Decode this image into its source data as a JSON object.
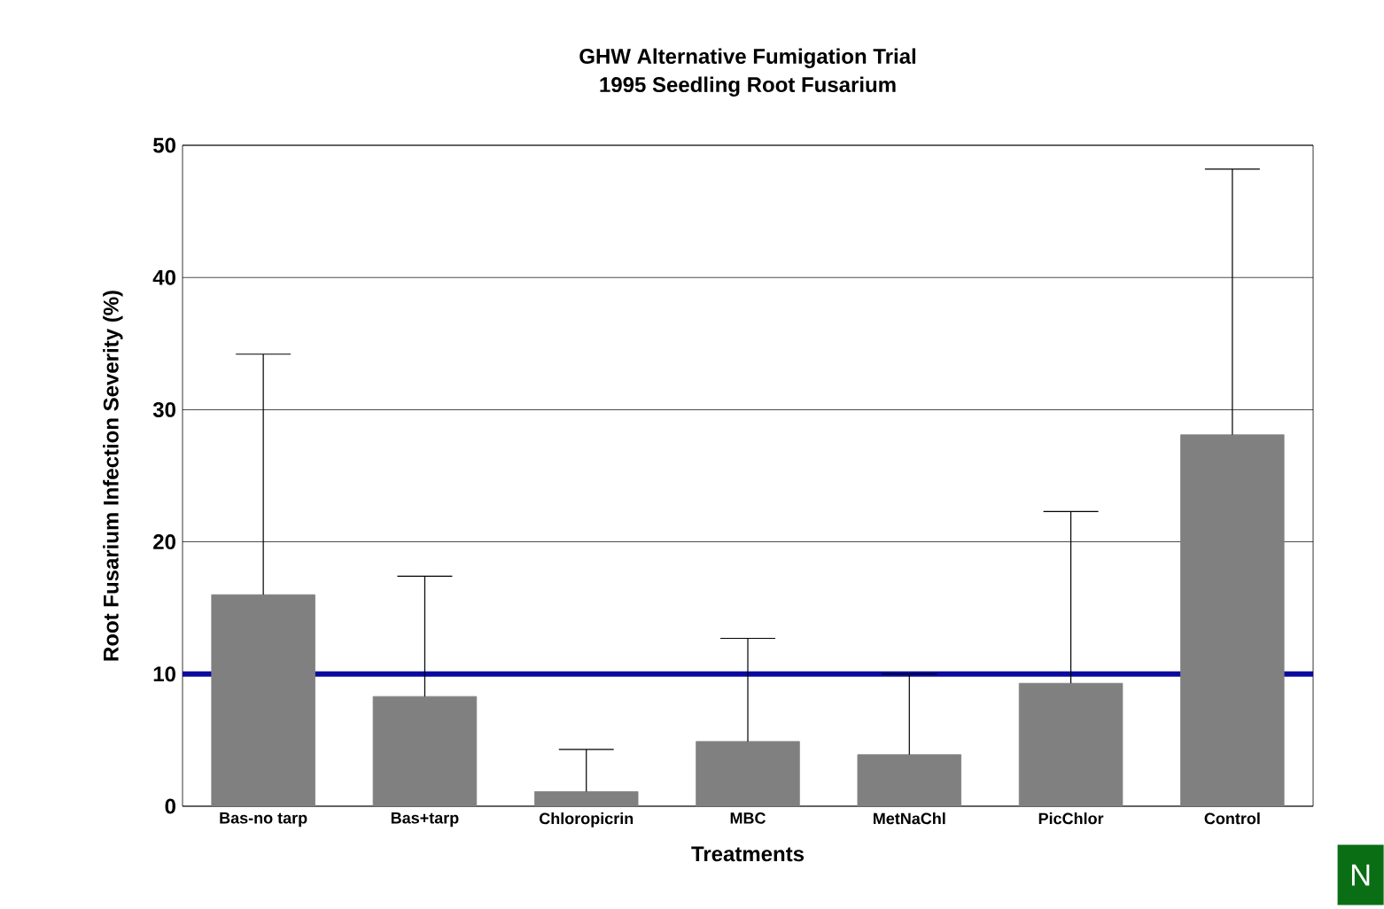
{
  "chart_data": {
    "type": "bar",
    "title": "GHW Alternative Fumigation Trial",
    "subtitle": "1995 Seedling Root Fusarium",
    "xlabel": "Treatments",
    "ylabel": "Root Fusarium Infection Severity (%)",
    "categories": [
      "Bas-no tarp",
      "Bas+tarp",
      "Chloropicrin",
      "MBC",
      "MetNaChl",
      "PicChlor",
      "Control"
    ],
    "values": [
      16.0,
      8.3,
      1.1,
      4.9,
      3.9,
      9.3,
      28.1
    ],
    "errors": [
      [
        16.0,
        34.2
      ],
      [
        8.3,
        17.4
      ],
      [
        1.1,
        4.3
      ],
      [
        4.9,
        12.7
      ],
      [
        3.9,
        10.0
      ],
      [
        9.3,
        22.3
      ],
      [
        28.1,
        48.2
      ]
    ],
    "color": "#808080",
    "ylim": [
      0,
      50
    ],
    "yticks": [
      0,
      10,
      20,
      30,
      40,
      50
    ],
    "grid": "y",
    "ref_lines": [
      {
        "axis": "y",
        "value": 10,
        "color": "#0a0aa0"
      }
    ],
    "annotations": [
      "N"
    ]
  }
}
